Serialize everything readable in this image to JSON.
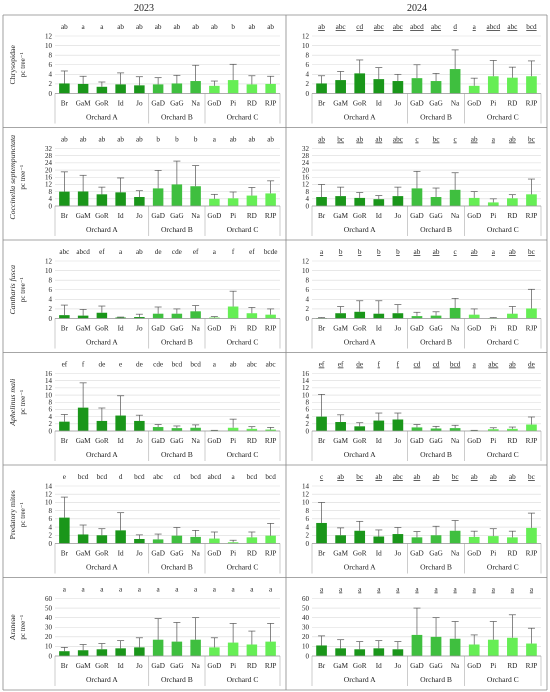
{
  "years": [
    "2023",
    "2024"
  ],
  "groups": [
    {
      "name": "Orchard A",
      "count": 5
    },
    {
      "name": "Orchard B",
      "count": 3
    },
    {
      "name": "Orchard C",
      "count": 4
    }
  ],
  "colors": {
    "A": "#1a961a",
    "B": "#3fbf3f",
    "C": "#66ee55",
    "error": "#555555",
    "grid": "#d9d9d9"
  },
  "chart_data": [
    {
      "type": "bar",
      "taxon": "Chrysopidae",
      "italic": false,
      "unit": "pc tree⁻¹",
      "ylim": [
        0,
        12
      ],
      "yticks": [
        0,
        2,
        4,
        6,
        8,
        10,
        12
      ],
      "categories": [
        "Br",
        "GaM",
        "GoR",
        "Id",
        "Jo",
        "GaD",
        "GaG",
        "Na",
        "GoD",
        "Pi",
        "RD",
        "RJP"
      ],
      "panels": [
        {
          "year": "2023",
          "underline": false,
          "values": [
            2.1,
            2.0,
            1.4,
            1.9,
            1.7,
            1.9,
            2.1,
            2.6,
            1.6,
            2.8,
            1.9,
            2.0
          ],
          "errors": [
            2.6,
            1.6,
            1.0,
            2.4,
            1.8,
            1.4,
            1.7,
            3.3,
            1.0,
            3.3,
            1.8,
            1.6
          ],
          "letters": [
            "ab",
            "a",
            "a",
            "ab",
            "ab",
            "ab",
            "ab",
            "ab",
            "ab",
            "b",
            "ab",
            "ab"
          ]
        },
        {
          "year": "2024",
          "underline": true,
          "values": [
            2.1,
            2.8,
            4.2,
            3.0,
            2.6,
            3.2,
            2.6,
            5.1,
            1.6,
            3.6,
            3.3,
            3.6
          ],
          "errors": [
            1.6,
            1.8,
            2.8,
            2.4,
            1.4,
            2.8,
            1.6,
            4.0,
            1.6,
            3.3,
            2.2,
            3.2
          ],
          "letters": [
            "ab",
            "abc",
            "cd",
            "abc",
            "abc",
            "abcd",
            "abc",
            "d",
            "a",
            "abcd",
            "abc",
            "bcd"
          ]
        }
      ]
    },
    {
      "type": "bar",
      "taxon": "Coccinella septempunctata",
      "italic": true,
      "unit": "pc tree⁻¹",
      "ylim": [
        0,
        32
      ],
      "yticks": [
        0,
        4,
        8,
        12,
        16,
        20,
        24,
        28,
        32
      ],
      "categories": [
        "Br",
        "GaM",
        "GoR",
        "Id",
        "Jo",
        "GaD",
        "GaG",
        "Na",
        "GoD",
        "Pi",
        "RD",
        "RJP"
      ],
      "panels": [
        {
          "year": "2023",
          "underline": false,
          "values": [
            8.0,
            8.1,
            6.5,
            7.6,
            5.0,
            9.8,
            12.0,
            11.0,
            4.0,
            4.3,
            5.8,
            7.0
          ],
          "errors": [
            11.0,
            9.0,
            4.0,
            8.0,
            3.5,
            10.0,
            13.0,
            11.5,
            2.5,
            3.5,
            4.5,
            7.0
          ],
          "letters": [
            "ab",
            "ab",
            "ab",
            "ab",
            "ab",
            "b",
            "b",
            "b",
            "a",
            "ab",
            "ab",
            "ab"
          ]
        },
        {
          "year": "2024",
          "underline": true,
          "values": [
            5.0,
            5.5,
            4.5,
            3.8,
            5.5,
            9.8,
            5.0,
            9.0,
            4.5,
            2.0,
            4.3,
            6.5
          ],
          "errors": [
            7.0,
            5.0,
            3.0,
            2.0,
            5.0,
            9.5,
            5.0,
            9.5,
            3.5,
            2.0,
            2.0,
            8.5
          ],
          "letters": [
            "ab",
            "bc",
            "ab",
            "ab",
            "abc",
            "c",
            "bc",
            "c",
            "ab",
            "a",
            "ab",
            "bc"
          ]
        }
      ]
    },
    {
      "type": "bar",
      "taxon": "Cantharis fusca",
      "italic": true,
      "unit": "pc tree⁻¹",
      "ylim": [
        0,
        12
      ],
      "yticks": [
        0,
        2,
        4,
        6,
        8,
        10,
        12
      ],
      "categories": [
        "Br",
        "GaM",
        "GoR",
        "Id",
        "Jo",
        "GaD",
        "GaG",
        "Na",
        "GoD",
        "Pi",
        "RD",
        "RJP"
      ],
      "panels": [
        {
          "year": "2023",
          "underline": false,
          "values": [
            0.7,
            0.6,
            1.2,
            0.2,
            0.3,
            1.0,
            1.0,
            1.5,
            0.2,
            2.5,
            1.1,
            0.8
          ],
          "errors": [
            2.1,
            1.3,
            1.4,
            0.1,
            0.6,
            1.4,
            1.0,
            1.2,
            0.2,
            3.2,
            1.2,
            1.2
          ],
          "letters": [
            "abc",
            "abcd",
            "ef",
            "a",
            "ab",
            "de",
            "cde",
            "ef",
            "a",
            "f",
            "ef",
            "bcde"
          ]
        },
        {
          "year": "2024",
          "underline": true,
          "values": [
            0.1,
            1.1,
            1.4,
            1.0,
            1.1,
            0.5,
            0.6,
            2.2,
            0.8,
            0.1,
            1.0,
            2.1
          ],
          "errors": [
            0.1,
            1.4,
            2.3,
            2.7,
            1.8,
            0.8,
            0.8,
            2.0,
            1.2,
            0.1,
            1.5,
            4.0
          ],
          "letters": [
            "a",
            "b",
            "b",
            "b",
            "b",
            "ab",
            "ab",
            "c",
            "ab",
            "a",
            "ab",
            "bc"
          ]
        }
      ]
    },
    {
      "type": "bar",
      "taxon": "Aphelinus mali",
      "italic": true,
      "unit": "pc tree⁻¹",
      "ylim": [
        0,
        16
      ],
      "yticks": [
        0,
        2,
        4,
        6,
        8,
        10,
        12,
        14,
        16
      ],
      "categories": [
        "Br",
        "GaM",
        "GoR",
        "Id",
        "Jo",
        "GaD",
        "GaG",
        "Na",
        "GoD",
        "Pi",
        "RD",
        "RJP"
      ],
      "panels": [
        {
          "year": "2023",
          "underline": false,
          "values": [
            2.6,
            6.5,
            2.8,
            4.3,
            2.8,
            1.1,
            0.8,
            0.9,
            0.1,
            0.9,
            0.6,
            0.4
          ],
          "errors": [
            2.0,
            6.9,
            3.6,
            5.5,
            1.6,
            0.7,
            0.6,
            0.8,
            0.1,
            2.4,
            0.6,
            0.6
          ],
          "letters": [
            "ef",
            "f",
            "de",
            "e",
            "de",
            "cde",
            "bcd",
            "bcd",
            "a",
            "ab",
            "abc",
            "abc"
          ]
        },
        {
          "year": "2024",
          "underline": true,
          "values": [
            4.0,
            2.5,
            1.3,
            2.9,
            3.2,
            1.0,
            0.7,
            0.8,
            0.1,
            0.5,
            0.6,
            1.8
          ],
          "errors": [
            6.2,
            2.0,
            1.0,
            2.1,
            1.8,
            0.8,
            0.6,
            0.8,
            0.1,
            0.4,
            0.5,
            2.1
          ],
          "letters": [
            "ef",
            "ef",
            "de",
            "f",
            "f",
            "cd",
            "cd",
            "bcd",
            "a",
            "abc",
            "ab",
            "de"
          ]
        }
      ]
    },
    {
      "type": "bar",
      "taxon": "Predatory mites",
      "italic": false,
      "unit": "pc tree⁻¹",
      "ylim": [
        0,
        14
      ],
      "yticks": [
        0,
        2,
        4,
        6,
        8,
        10,
        12,
        14
      ],
      "categories": [
        "Br",
        "GaM",
        "GoR",
        "Id",
        "Jo",
        "GaD",
        "GaG",
        "Na",
        "GoD",
        "Pi",
        "RD",
        "RJP"
      ],
      "panels": [
        {
          "year": "2023",
          "underline": false,
          "values": [
            6.3,
            2.2,
            2.0,
            3.2,
            1.1,
            1.0,
            1.9,
            1.6,
            1.2,
            0.3,
            1.5,
            1.9
          ],
          "errors": [
            5.0,
            2.3,
            1.6,
            4.3,
            1.0,
            1.3,
            2.0,
            1.6,
            1.6,
            0.5,
            1.3,
            3.0
          ],
          "letters": [
            "e",
            "bcd",
            "bcd",
            "d",
            "bcd",
            "abc",
            "cd",
            "bcd",
            "abcd",
            "a",
            "bcd",
            "bcd"
          ]
        },
        {
          "year": "2024",
          "underline": true,
          "values": [
            5.0,
            2.0,
            3.1,
            1.7,
            2.3,
            1.5,
            2.0,
            3.1,
            1.6,
            1.8,
            1.5,
            3.8
          ],
          "errors": [
            5.0,
            1.8,
            2.3,
            1.6,
            1.6,
            1.4,
            2.2,
            2.5,
            1.4,
            1.8,
            1.5,
            3.6
          ],
          "letters": [
            "c",
            "ab",
            "bc",
            "ab",
            "abc",
            "ab",
            "ab",
            "bc",
            "ab",
            "ab",
            "ab",
            "bc"
          ]
        }
      ]
    },
    {
      "type": "bar",
      "taxon": "Araneae",
      "italic": false,
      "unit": "pc tree⁻¹",
      "ylim": [
        0,
        60
      ],
      "yticks": [
        0,
        10,
        20,
        30,
        40,
        50,
        60
      ],
      "categories": [
        "Br",
        "GaM",
        "GoR",
        "Id",
        "Jo",
        "GaD",
        "GaG",
        "Na",
        "GoD",
        "Pi",
        "RD",
        "RJP"
      ],
      "panels": [
        {
          "year": "2023",
          "underline": false,
          "values": [
            5,
            6,
            7,
            8,
            9,
            17,
            15,
            17,
            9,
            14,
            12,
            15
          ],
          "errors": [
            4,
            6,
            6,
            8,
            10,
            22,
            20,
            23,
            10,
            20,
            14,
            19
          ],
          "letters": [
            "a",
            "a",
            "a",
            "a",
            "a",
            "a",
            "a",
            "a",
            "a",
            "a",
            "a",
            "a"
          ]
        },
        {
          "year": "2024",
          "underline": true,
          "values": [
            11,
            8,
            7,
            8,
            7,
            22,
            20,
            18,
            12,
            17,
            19,
            13
          ],
          "errors": [
            10,
            9,
            8,
            8,
            8,
            28,
            20,
            18,
            10,
            19,
            24,
            16
          ],
          "letters": [
            "a",
            "a",
            "a",
            "a",
            "a",
            "a",
            "a",
            "a",
            "a",
            "a",
            "a",
            "a"
          ]
        }
      ]
    }
  ]
}
